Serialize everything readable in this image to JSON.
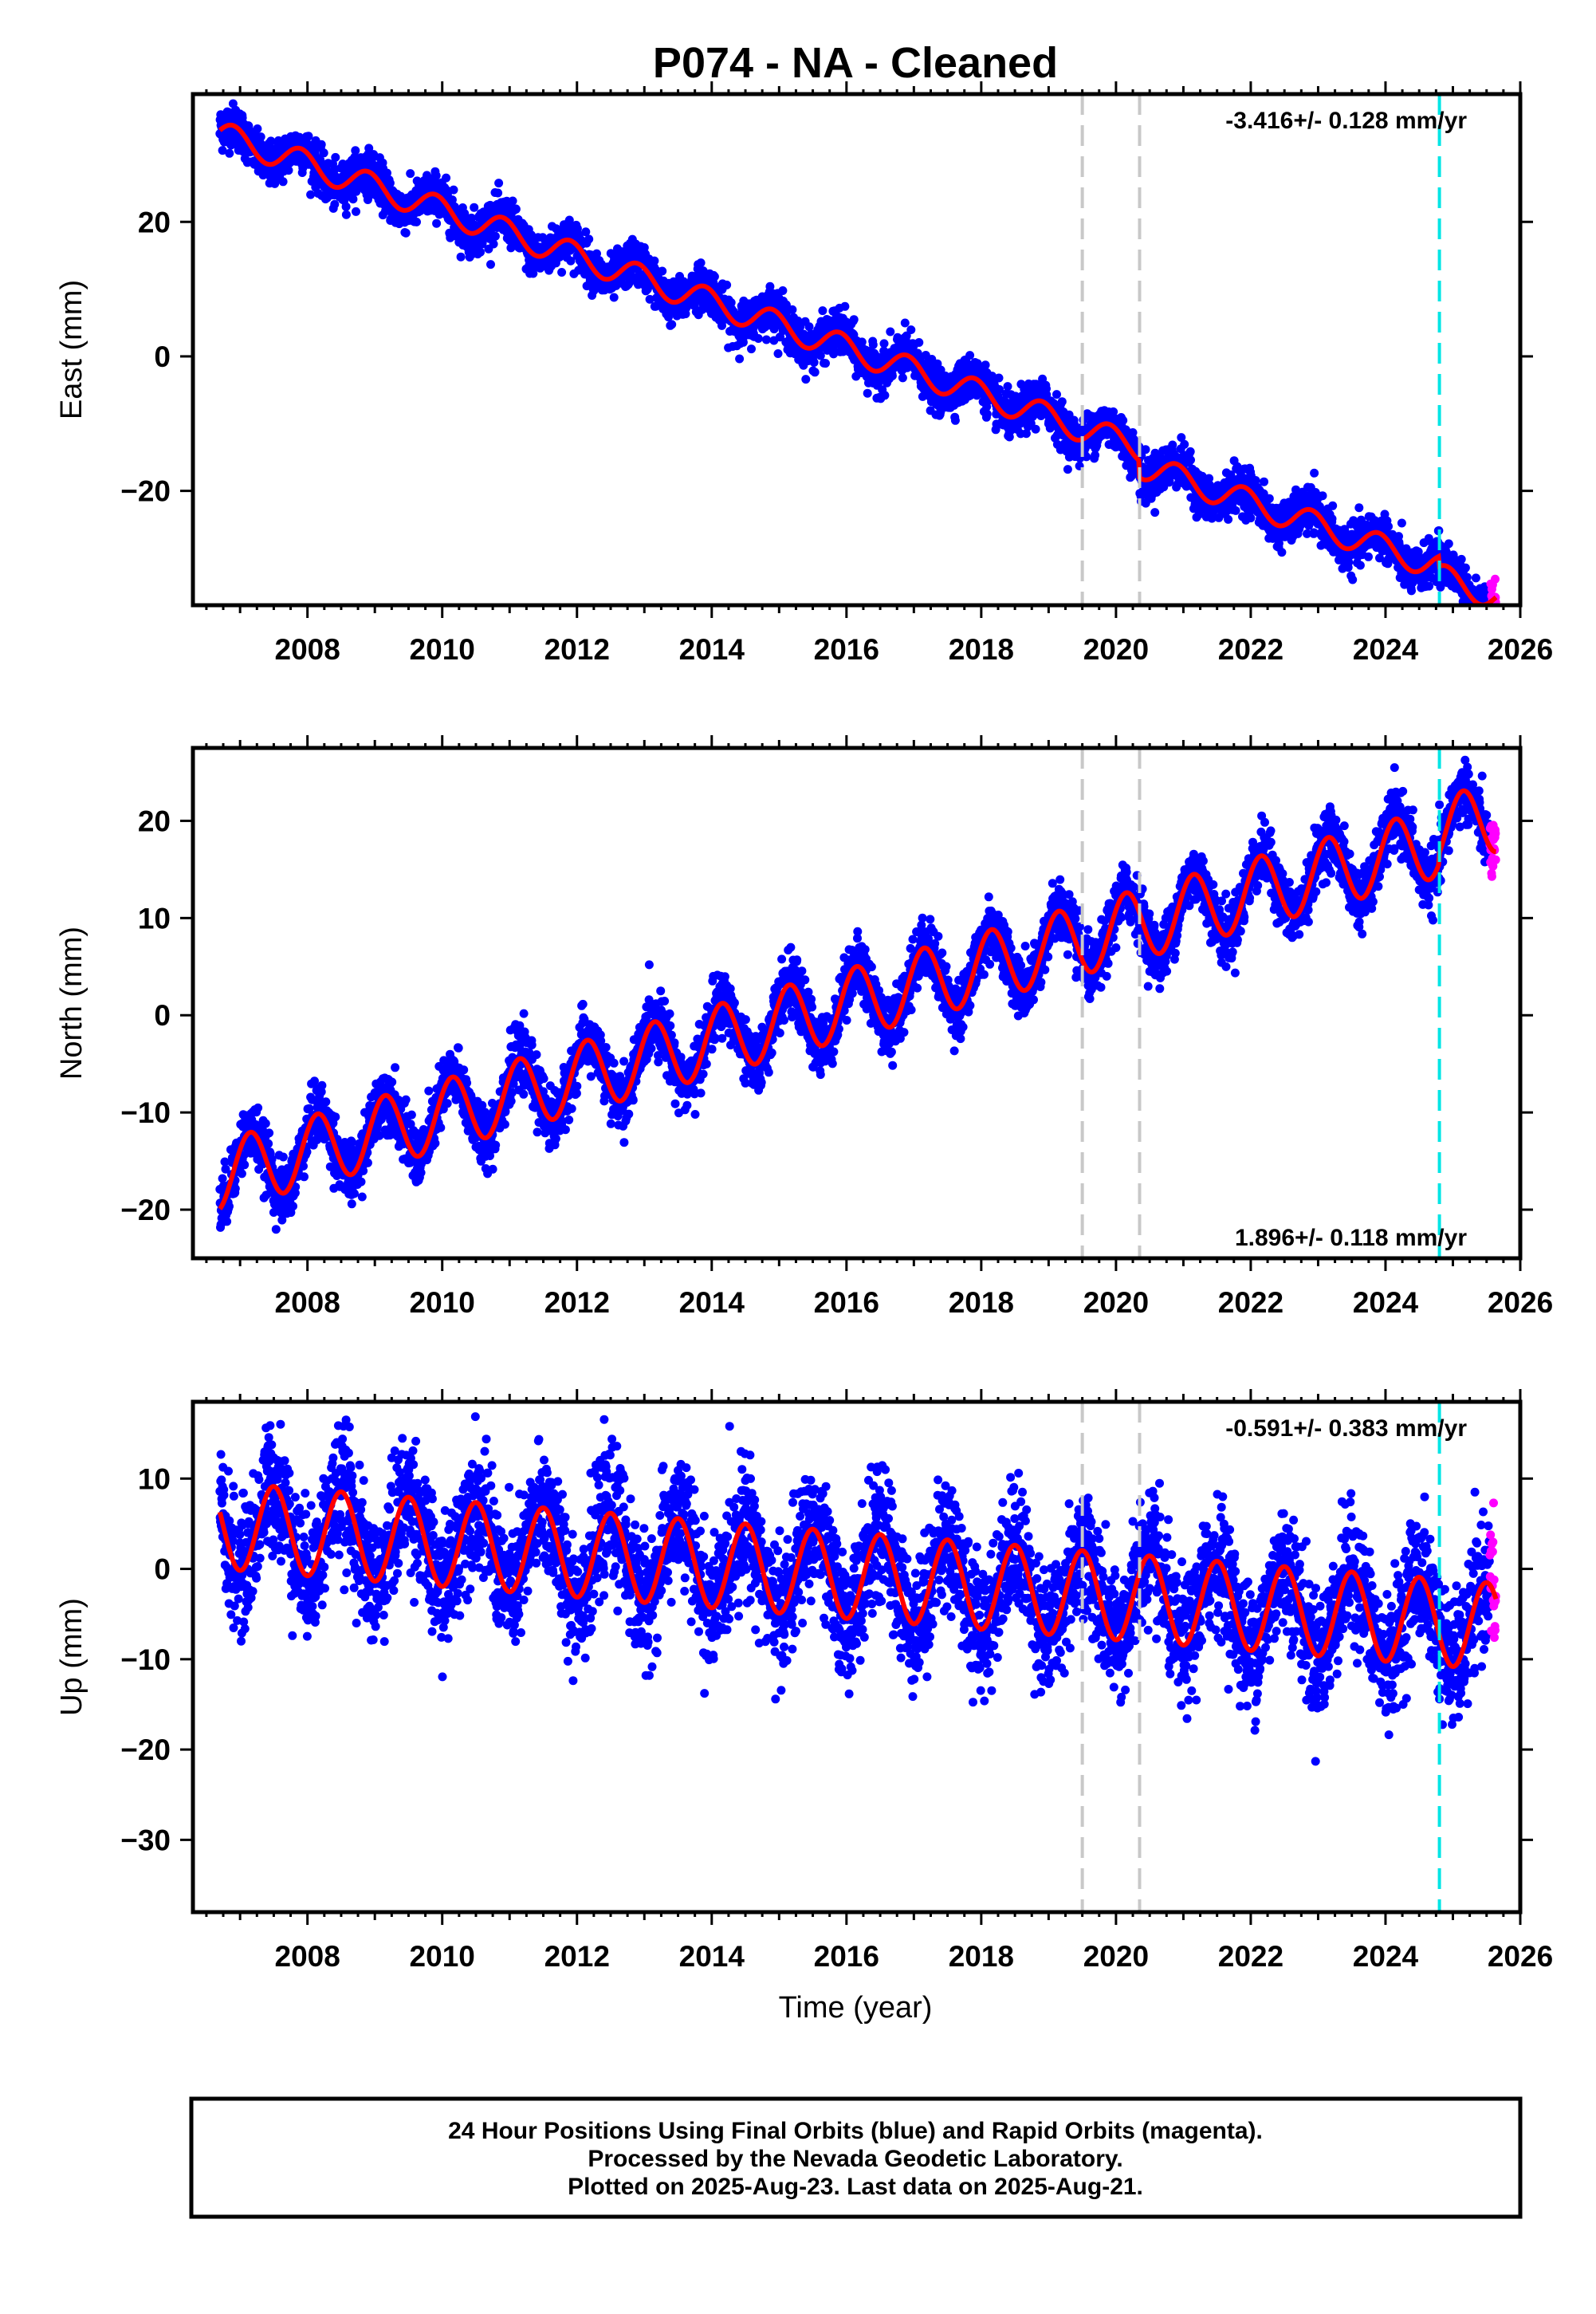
{
  "title": "P074  - NA - Cleaned",
  "xlabel": "Time (year)",
  "footer": [
    "24 Hour Positions Using Final Orbits (blue) and Rapid Orbits (magenta).",
    "Processed by the Nevada Geodetic Laboratory.",
    "Plotted on 2025-Aug-23. Last data on 2025-Aug-21."
  ],
  "colors": {
    "final": "#0000ff",
    "rapid": "#ff00ff",
    "model": "#ff0000",
    "equipment_change": "#c8c8c8",
    "earthquake": "#00e5e5"
  },
  "chart_data": [
    {
      "type": "scatter",
      "name": "east",
      "ylabel": "East (mm)",
      "rate_label": "-3.416+/- 0.128 mm/yr",
      "rate_position": "top-right",
      "xlim": [
        2006.3,
        2026.0
      ],
      "ylim": [
        -37,
        39
      ],
      "xticks": [
        2008,
        2010,
        2012,
        2014,
        2016,
        2018,
        2020,
        2022,
        2024,
        2026
      ],
      "yticks": [
        -20,
        0,
        20
      ],
      "start": 2006.7,
      "final_end": 2025.55,
      "last": 2025.64,
      "trend": {
        "rate": -3.416,
        "intercept": 33.0,
        "ref_year": 2006.7
      },
      "annual_amplitude": 2.0,
      "annual_phase": 0.9,
      "offsets": [
        {
          "year": 2020.35,
          "value": -2.5
        },
        {
          "year": 2024.8,
          "value": -1.5
        }
      ],
      "noise": 1.6,
      "points_per_year": 260,
      "gray_lines": [
        2019.5,
        2020.35
      ],
      "cyan_lines": [
        2024.8
      ]
    },
    {
      "type": "scatter",
      "name": "north",
      "ylabel": "North (mm)",
      "rate_label": "1.896+/- 0.118 mm/yr",
      "rate_position": "bottom-right",
      "xlim": [
        2006.3,
        2026.0
      ],
      "ylim": [
        -25,
        27.5
      ],
      "xticks": [
        2008,
        2010,
        2012,
        2014,
        2016,
        2018,
        2020,
        2022,
        2024,
        2026
      ],
      "yticks": [
        -20,
        -10,
        0,
        10,
        20
      ],
      "start": 2006.7,
      "final_end": 2025.55,
      "last": 2025.64,
      "trend": {
        "rate": 1.896,
        "intercept": -16.5,
        "ref_year": 2006.7
      },
      "annual_amplitude": 3.6,
      "annual_phase": 0.15,
      "offsets": [
        {
          "year": 2024.8,
          "value": 1.0
        }
      ],
      "noise": 1.5,
      "points_per_year": 260,
      "gray_lines": [
        2019.5,
        2020.35
      ],
      "cyan_lines": [
        2024.8
      ]
    },
    {
      "type": "scatter",
      "name": "up",
      "ylabel": "Up (mm)",
      "rate_label": "-0.591+/- 0.383 mm/yr",
      "rate_position": "top-right",
      "xlim": [
        2006.3,
        2026.0
      ],
      "ylim": [
        -38,
        18.5
      ],
      "xticks": [
        2008,
        2010,
        2012,
        2014,
        2016,
        2018,
        2020,
        2022,
        2024,
        2026
      ],
      "yticks": [
        -30,
        -20,
        -10,
        0,
        10
      ],
      "start": 2006.7,
      "final_end": 2025.55,
      "last": 2025.64,
      "trend": {
        "rate": -0.591,
        "intercept": 4.8,
        "ref_year": 2006.7
      },
      "annual_amplitude": 4.8,
      "annual_phase": 0.5,
      "offsets": [],
      "noise": 3.5,
      "points_per_year": 260,
      "gray_lines": [
        2019.5,
        2020.35
      ],
      "cyan_lines": [
        2024.8
      ]
    }
  ]
}
